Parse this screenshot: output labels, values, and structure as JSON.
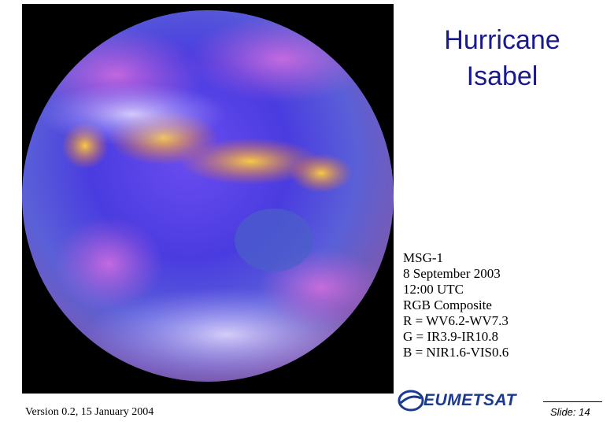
{
  "slide": {
    "title": "Hurricane Isabel",
    "info": [
      "MSG-1",
      "8 September 2003",
      "12:00 UTC",
      "RGB Composite",
      "R = WV6.2-WV7.3",
      "G = IR3.9-IR10.8",
      "B = NIR1.6-VIS0.6"
    ],
    "footer": {
      "version": "Version 0.2, 15 January 2004",
      "logo": "EUMETSAT",
      "slide_number": "Slide: 14"
    }
  }
}
